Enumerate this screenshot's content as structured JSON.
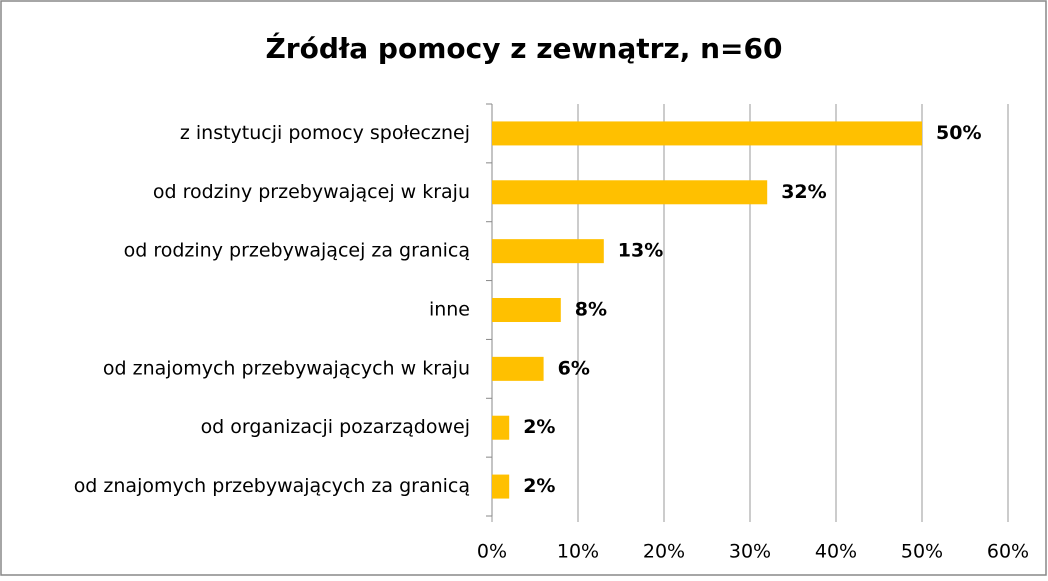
{
  "chart_data": {
    "type": "bar",
    "orientation": "horizontal",
    "title": "Źródła pomocy z zewnątrz, n=60",
    "categories": [
      "z instytucji pomocy społecznej",
      "od rodziny przebywającej w kraju",
      "od rodziny przebywającej za granicą",
      "inne",
      "od znajomych przebywających w kraju",
      "od organizacji pozarządowej",
      "od znajomych przebywających za granicą"
    ],
    "values": [
      50,
      32,
      13,
      8,
      6,
      2,
      2
    ],
    "value_labels": [
      "50%",
      "32%",
      "13%",
      "8%",
      "6%",
      "2%",
      "2%"
    ],
    "color": "#ffc000",
    "xlim": [
      0,
      60
    ],
    "xticks": [
      {
        "value": 0,
        "label": "0%"
      },
      {
        "value": 10,
        "label": "10%"
      },
      {
        "value": 20,
        "label": "20%"
      },
      {
        "value": 30,
        "label": "30%"
      },
      {
        "value": 40,
        "label": "40%"
      },
      {
        "value": 50,
        "label": "50%"
      },
      {
        "value": 60,
        "label": "60%"
      }
    ],
    "grid": true
  }
}
